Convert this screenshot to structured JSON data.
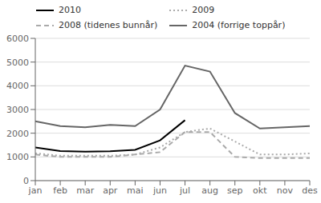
{
  "chart_data": {
    "type": "line",
    "categories": [
      "jan",
      "feb",
      "mar",
      "apr",
      "mai",
      "jun",
      "jul",
      "aug",
      "sep",
      "okt",
      "nov",
      "des"
    ],
    "series": [
      {
        "name": "2010",
        "color": "#000000",
        "line_style": "solid",
        "values": [
          1400,
          1250,
          1220,
          1240,
          1300,
          1700,
          2550,
          null,
          null,
          null,
          null,
          null
        ]
      },
      {
        "name": "2009",
        "color": "#aaaaaa",
        "line_style": "dotted",
        "values": [
          1150,
          1050,
          1050,
          1050,
          1100,
          1400,
          2050,
          2200,
          1650,
          1100,
          1100,
          1150
        ]
      },
      {
        "name": "2008 (tidenes bunnår)",
        "color": "#aaaaaa",
        "line_style": "dashed",
        "values": [
          1100,
          1000,
          1000,
          1000,
          1100,
          1200,
          2050,
          2050,
          1000,
          950,
          950,
          950
        ]
      },
      {
        "name": "2004 (forrige toppår)",
        "color": "#666666",
        "line_style": "solid",
        "values": [
          2500,
          2300,
          2250,
          2350,
          2300,
          3000,
          4850,
          4600,
          2850,
          2200,
          2250,
          2300
        ]
      }
    ],
    "ylim": [
      0,
      6000
    ],
    "yticks": [
      0,
      1000,
      2000,
      3000,
      4000,
      5000,
      6000
    ],
    "grid": true,
    "legend": "upper left"
  }
}
